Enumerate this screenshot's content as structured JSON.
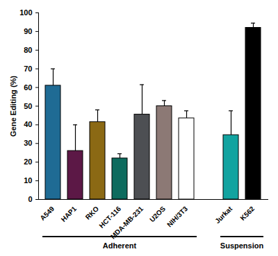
{
  "chart_data": {
    "type": "bar",
    "categories": [
      "A549",
      "HAP1",
      "RKO",
      "HCT-116",
      "MDA-MB-231",
      "U2OS",
      "NIH/3T3",
      null,
      "Jurkat",
      "K562"
    ],
    "values": [
      61,
      26,
      41.5,
      22,
      45.5,
      50,
      43.5,
      null,
      34.5,
      92
    ],
    "errors": [
      9,
      14,
      6.5,
      2.5,
      16,
      3,
      4,
      null,
      13,
      2.5
    ],
    "colors": [
      "#1f6b94",
      "#5c1846",
      "#8b6914",
      "#0d6b5e",
      "#4d4f53",
      "#8c7975",
      "#ffffff",
      null,
      "#12a3a0",
      "#000000"
    ],
    "y_label": "Gene Editing (%)",
    "ylim": [
      0,
      100
    ],
    "yticks": [
      0,
      10,
      20,
      30,
      40,
      50,
      60,
      70,
      80,
      90,
      100
    ],
    "groups": [
      {
        "name": "Adherent",
        "categories": [
          "A549",
          "HAP1",
          "RKO",
          "HCT-116",
          "MDA-MB-231",
          "U2OS",
          "NIH/3T3"
        ]
      },
      {
        "name": "Suspension",
        "categories": [
          "Jurkat",
          "K562"
        ]
      }
    ]
  }
}
